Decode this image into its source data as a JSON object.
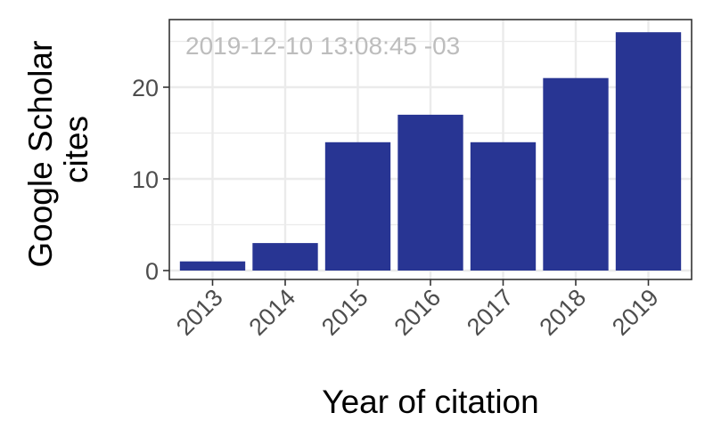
{
  "chart_data": {
    "type": "bar",
    "categories": [
      "2013",
      "2014",
      "2015",
      "2016",
      "2017",
      "2018",
      "2019"
    ],
    "values": [
      1,
      3,
      14,
      17,
      14,
      21,
      26
    ],
    "title": "",
    "xlabel": "Year of citation",
    "ylabel_lines": [
      "Google Scholar",
      "cites"
    ],
    "ylim": [
      0,
      27.25
    ],
    "yticks": [
      0,
      10,
      20
    ],
    "grid": true,
    "annotation": "2019-12-10 13:08:45 -03",
    "colors": {
      "bar": "#283593",
      "grid": "#ebebeb",
      "panel_border": "#333333"
    }
  }
}
